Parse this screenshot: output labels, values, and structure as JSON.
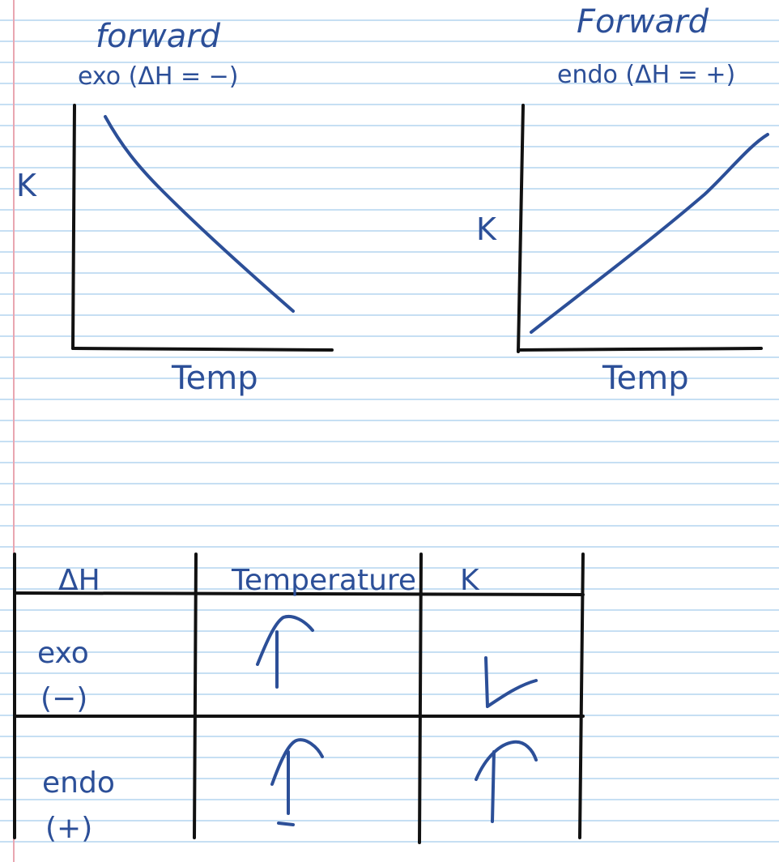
{
  "colors": {
    "ink": "#2c4f98",
    "axis": "#111111",
    "rule": "#c6dff3",
    "margin": "#e9a6b1"
  },
  "graph_left": {
    "title": "forward",
    "subtitle": "exo (ΔH = −)",
    "ylabel": "K",
    "xlabel": "Temp",
    "trend": "decreasing"
  },
  "graph_right": {
    "title": "Forward",
    "subtitle": "endo (ΔH = +)",
    "ylabel": "K",
    "xlabel": "Temp",
    "trend": "increasing"
  },
  "table": {
    "headers": [
      "ΔH",
      "Temperature",
      "K"
    ],
    "rows": [
      {
        "dh": "exo",
        "sign": "(−)",
        "temperature": "up-arrow",
        "k": "down-arrow"
      },
      {
        "dh": "endo",
        "sign": "(+)",
        "temperature": "up-arrow",
        "k": "up-arrow"
      }
    ]
  }
}
